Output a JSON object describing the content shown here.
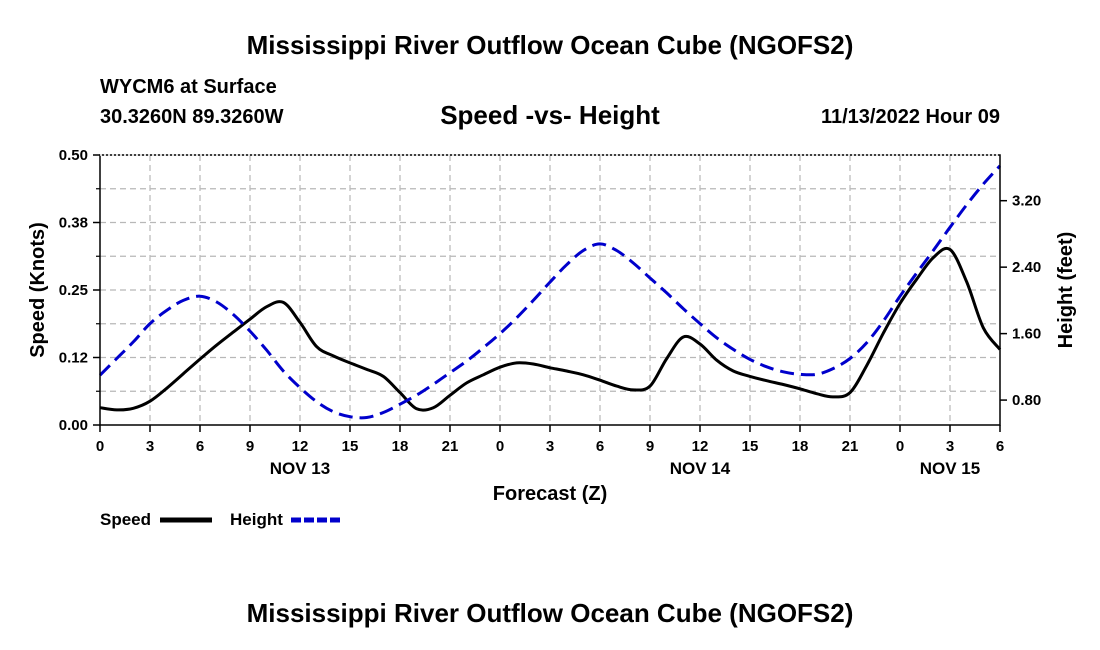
{
  "header": {
    "title": "Mississippi River Outflow Ocean Cube (NGOFS2)",
    "station": "WYCM6 at Surface",
    "coords": "30.3260N  89.3260W",
    "subtitle": "Speed -vs- Height",
    "datetime": "11/13/2022 Hour 09"
  },
  "footer": {
    "title": "Mississippi River Outflow Ocean Cube (NGOFS2)"
  },
  "chart_data": {
    "type": "line",
    "xlabel": "Forecast (Z)",
    "ylabel": "Speed (Knots)",
    "y2label": "Height (feet)",
    "x_range": [
      0,
      54
    ],
    "ylim": [
      0,
      0.5
    ],
    "y2lim": [
      0.5,
      3.75
    ],
    "grid": true,
    "x_ticks": [
      0,
      3,
      6,
      9,
      12,
      15,
      18,
      21,
      24,
      27,
      30,
      33,
      36,
      39,
      42,
      45,
      48,
      51,
      54
    ],
    "x_tick_labels": [
      "0",
      "3",
      "6",
      "9",
      "12",
      "15",
      "18",
      "21",
      "0",
      "3",
      "6",
      "9",
      "12",
      "15",
      "18",
      "21",
      "0",
      "3",
      "6"
    ],
    "day_labels": [
      {
        "x": 12,
        "label": "NOV 13"
      },
      {
        "x": 36,
        "label": "NOV 14"
      },
      {
        "x": 51,
        "label": "NOV 15"
      }
    ],
    "y_ticks": [
      0,
      0.125,
      0.25,
      0.375,
      0.5
    ],
    "y_tick_labels": [
      "0.00",
      "0.12",
      "0.25",
      "0.38",
      "0.50"
    ],
    "y2_ticks": [
      0.8,
      1.6,
      2.4,
      3.2
    ],
    "y2_tick_labels": [
      "0.80",
      "1.60",
      "2.40",
      "3.20"
    ],
    "series": [
      {
        "name": "Speed",
        "axis": "left",
        "color": "#000000",
        "style": "solid",
        "x": [
          0,
          1,
          2,
          3,
          4,
          5,
          6,
          7,
          8,
          9,
          10,
          11,
          12,
          13,
          14,
          15,
          16,
          17,
          18,
          19,
          20,
          21,
          22,
          23,
          24,
          25,
          26,
          27,
          28,
          29,
          30,
          31,
          32,
          33,
          34,
          35,
          36,
          37,
          38,
          39,
          40,
          41,
          42,
          43,
          44,
          45,
          46,
          47,
          48,
          49,
          50,
          51,
          52,
          53,
          54
        ],
        "values": [
          0.032,
          0.028,
          0.031,
          0.044,
          0.068,
          0.095,
          0.122,
          0.148,
          0.172,
          0.196,
          0.219,
          0.227,
          0.19,
          0.145,
          0.128,
          0.115,
          0.103,
          0.09,
          0.06,
          0.03,
          0.032,
          0.055,
          0.078,
          0.093,
          0.107,
          0.115,
          0.113,
          0.106,
          0.1,
          0.093,
          0.083,
          0.072,
          0.065,
          0.072,
          0.123,
          0.163,
          0.15,
          0.12,
          0.1,
          0.09,
          0.082,
          0.075,
          0.067,
          0.058,
          0.052,
          0.06,
          0.11,
          0.17,
          0.225,
          0.27,
          0.31,
          0.325,
          0.265,
          0.18,
          0.14
        ]
      },
      {
        "name": "Height",
        "axis": "right",
        "color": "#0000cc",
        "style": "dashed",
        "x": [
          0,
          1,
          2,
          3,
          4,
          5,
          6,
          7,
          8,
          9,
          10,
          11,
          12,
          13,
          14,
          15,
          16,
          17,
          18,
          19,
          20,
          21,
          22,
          23,
          24,
          25,
          26,
          27,
          28,
          29,
          30,
          31,
          32,
          33,
          34,
          35,
          36,
          37,
          38,
          39,
          40,
          41,
          42,
          43,
          44,
          45,
          46,
          47,
          48,
          49,
          50,
          51,
          52,
          53,
          54
        ],
        "values": [
          1.1,
          1.3,
          1.5,
          1.72,
          1.88,
          2.0,
          2.05,
          1.98,
          1.83,
          1.63,
          1.4,
          1.15,
          0.95,
          0.78,
          0.66,
          0.6,
          0.59,
          0.65,
          0.75,
          0.86,
          0.99,
          1.13,
          1.27,
          1.43,
          1.6,
          1.79,
          2.0,
          2.22,
          2.43,
          2.6,
          2.68,
          2.6,
          2.45,
          2.27,
          2.09,
          1.9,
          1.72,
          1.55,
          1.41,
          1.29,
          1.2,
          1.14,
          1.11,
          1.11,
          1.18,
          1.3,
          1.49,
          1.75,
          2.05,
          2.33,
          2.6,
          2.88,
          3.15,
          3.4,
          3.62
        ]
      }
    ],
    "legend": [
      {
        "label": "Speed",
        "color": "#000000",
        "style": "solid"
      },
      {
        "label": "Height",
        "color": "#0000cc",
        "style": "dashed"
      }
    ]
  }
}
